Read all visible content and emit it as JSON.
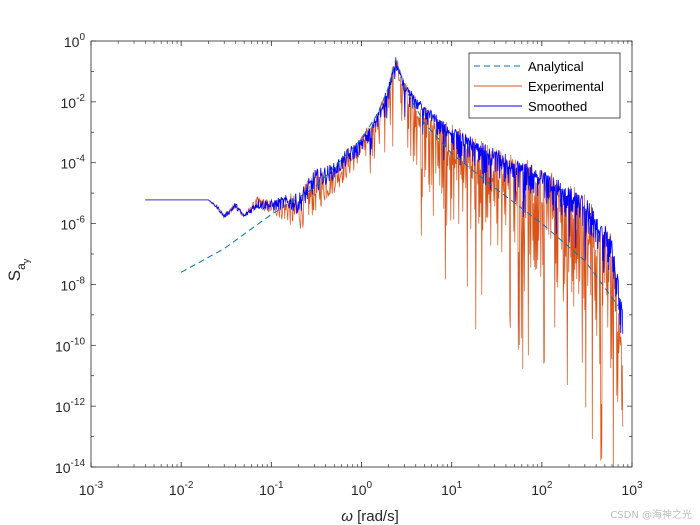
{
  "chart_data": {
    "type": "line",
    "scale": {
      "x": "log",
      "y": "log"
    },
    "xlim": [
      0.001,
      1000
    ],
    "ylim": [
      1e-14,
      1
    ],
    "xticks": [
      {
        "value": 0.001,
        "base": "10",
        "exp": "-3"
      },
      {
        "value": 0.01,
        "base": "10",
        "exp": "-2"
      },
      {
        "value": 0.1,
        "base": "10",
        "exp": "-1"
      },
      {
        "value": 1,
        "base": "10",
        "exp": "0"
      },
      {
        "value": 10,
        "base": "10",
        "exp": "1"
      },
      {
        "value": 100,
        "base": "10",
        "exp": "2"
      },
      {
        "value": 1000,
        "base": "10",
        "exp": "3"
      }
    ],
    "yticks": [
      {
        "value": 1e-14,
        "base": "10",
        "exp": "-14"
      },
      {
        "value": 1e-12,
        "base": "10",
        "exp": "-12"
      },
      {
        "value": 1e-10,
        "base": "10",
        "exp": "-10"
      },
      {
        "value": 1e-08,
        "base": "10",
        "exp": "-8"
      },
      {
        "value": 1e-06,
        "base": "10",
        "exp": "-6"
      },
      {
        "value": 0.0001,
        "base": "10",
        "exp": "-4"
      },
      {
        "value": 0.01,
        "base": "10",
        "exp": "-2"
      },
      {
        "value": 1,
        "base": "10",
        "exp": "0"
      }
    ],
    "xlabel": {
      "symbol": "ω",
      "text": " [rad/s]"
    },
    "ylabel": {
      "main": "S",
      "sub1": "a",
      "sub2": "y"
    },
    "legend": {
      "position": "top-right"
    },
    "series": [
      {
        "name": "Analytical",
        "color": "#0072BD",
        "style": "dashed",
        "x": [
          0.01,
          0.03,
          0.1,
          0.3,
          1,
          1.5,
          2,
          2.4,
          3,
          5,
          10,
          30,
          100,
          300,
          700
        ],
        "y": [
          2.5e-08,
          1.5e-07,
          2e-06,
          1.5e-05,
          0.0006,
          0.004,
          0.03,
          0.25,
          0.03,
          0.002,
          0.0002,
          1.5e-05,
          1e-06,
          6e-08,
          2e-09
        ]
      },
      {
        "name": "Experimental",
        "color": "#D95319",
        "style": "solid",
        "envelope_upper": {
          "x": [
            0.004,
            0.02,
            0.025,
            0.03,
            0.04,
            0.05,
            0.07,
            0.1,
            0.15,
            0.2,
            0.3,
            0.5,
            0.7,
            1,
            1.5,
            2,
            2.4,
            3,
            5,
            10,
            30,
            100,
            300,
            600,
            800
          ],
          "y": [
            6e-06,
            6e-06,
            4e-06,
            2e-06,
            5e-06,
            2e-06,
            8e-06,
            6e-06,
            1e-05,
            1e-05,
            6e-05,
            0.0001,
            0.0003,
            0.0008,
            0.005,
            0.05,
            0.4,
            0.05,
            0.01,
            0.002,
            0.0004,
            8e-05,
            1e-05,
            5e-07,
            1e-10
          ]
        },
        "envelope_lower": {
          "x": [
            0.004,
            0.02,
            0.025,
            0.03,
            0.04,
            0.05,
            0.07,
            0.1,
            0.15,
            0.2,
            0.3,
            0.5,
            0.7,
            1,
            1.5,
            2,
            2.4,
            3,
            5,
            10,
            30,
            100,
            300,
            600,
            800
          ],
          "y": [
            6e-06,
            6e-06,
            3e-06,
            1.5e-06,
            3e-06,
            1.5e-06,
            3e-06,
            2e-06,
            1e-06,
            5e-07,
            2e-06,
            1e-05,
            3e-05,
            0.0001,
            0.0006,
            0.003,
            0.01,
            0.0003,
            3e-05,
            1e-06,
            1e-07,
            1e-08,
            1e-09,
            1e-11,
            1e-13
          ]
        }
      },
      {
        "name": "Smoothed",
        "color": "#0000FF",
        "style": "solid",
        "envelope_upper": {
          "x": [
            0.004,
            0.02,
            0.025,
            0.03,
            0.04,
            0.05,
            0.07,
            0.1,
            0.15,
            0.2,
            0.3,
            0.5,
            0.7,
            1,
            1.5,
            2,
            2.4,
            3,
            5,
            10,
            30,
            100,
            300,
            600,
            800
          ],
          "y": [
            6e-06,
            6e-06,
            4e-06,
            2e-06,
            5e-06,
            2e-06,
            7e-06,
            6e-06,
            9e-06,
            1e-05,
            6e-05,
            0.0001,
            0.0003,
            0.0007,
            0.004,
            0.04,
            0.3,
            0.04,
            0.008,
            0.0015,
            0.0003,
            6e-05,
            8e-06,
            4e-07,
            1e-09
          ]
        },
        "envelope_lower": {
          "x": [
            0.004,
            0.02,
            0.025,
            0.03,
            0.04,
            0.05,
            0.07,
            0.1,
            0.15,
            0.2,
            0.3,
            0.5,
            0.7,
            1,
            1.5,
            2,
            2.4,
            3,
            5,
            10,
            30,
            100,
            300,
            600,
            800
          ],
          "y": [
            6e-06,
            6e-06,
            3e-06,
            1.5e-06,
            3e-06,
            1.5e-06,
            3e-06,
            2.5e-06,
            3e-06,
            2e-06,
            1e-05,
            3e-05,
            8e-05,
            0.0002,
            0.0012,
            0.01,
            0.05,
            0.01,
            0.002,
            0.0002,
            3e-05,
            5e-06,
            5e-07,
            2e-08,
            5e-11
          ]
        }
      }
    ]
  },
  "watermark": "CSDN @海神之光"
}
